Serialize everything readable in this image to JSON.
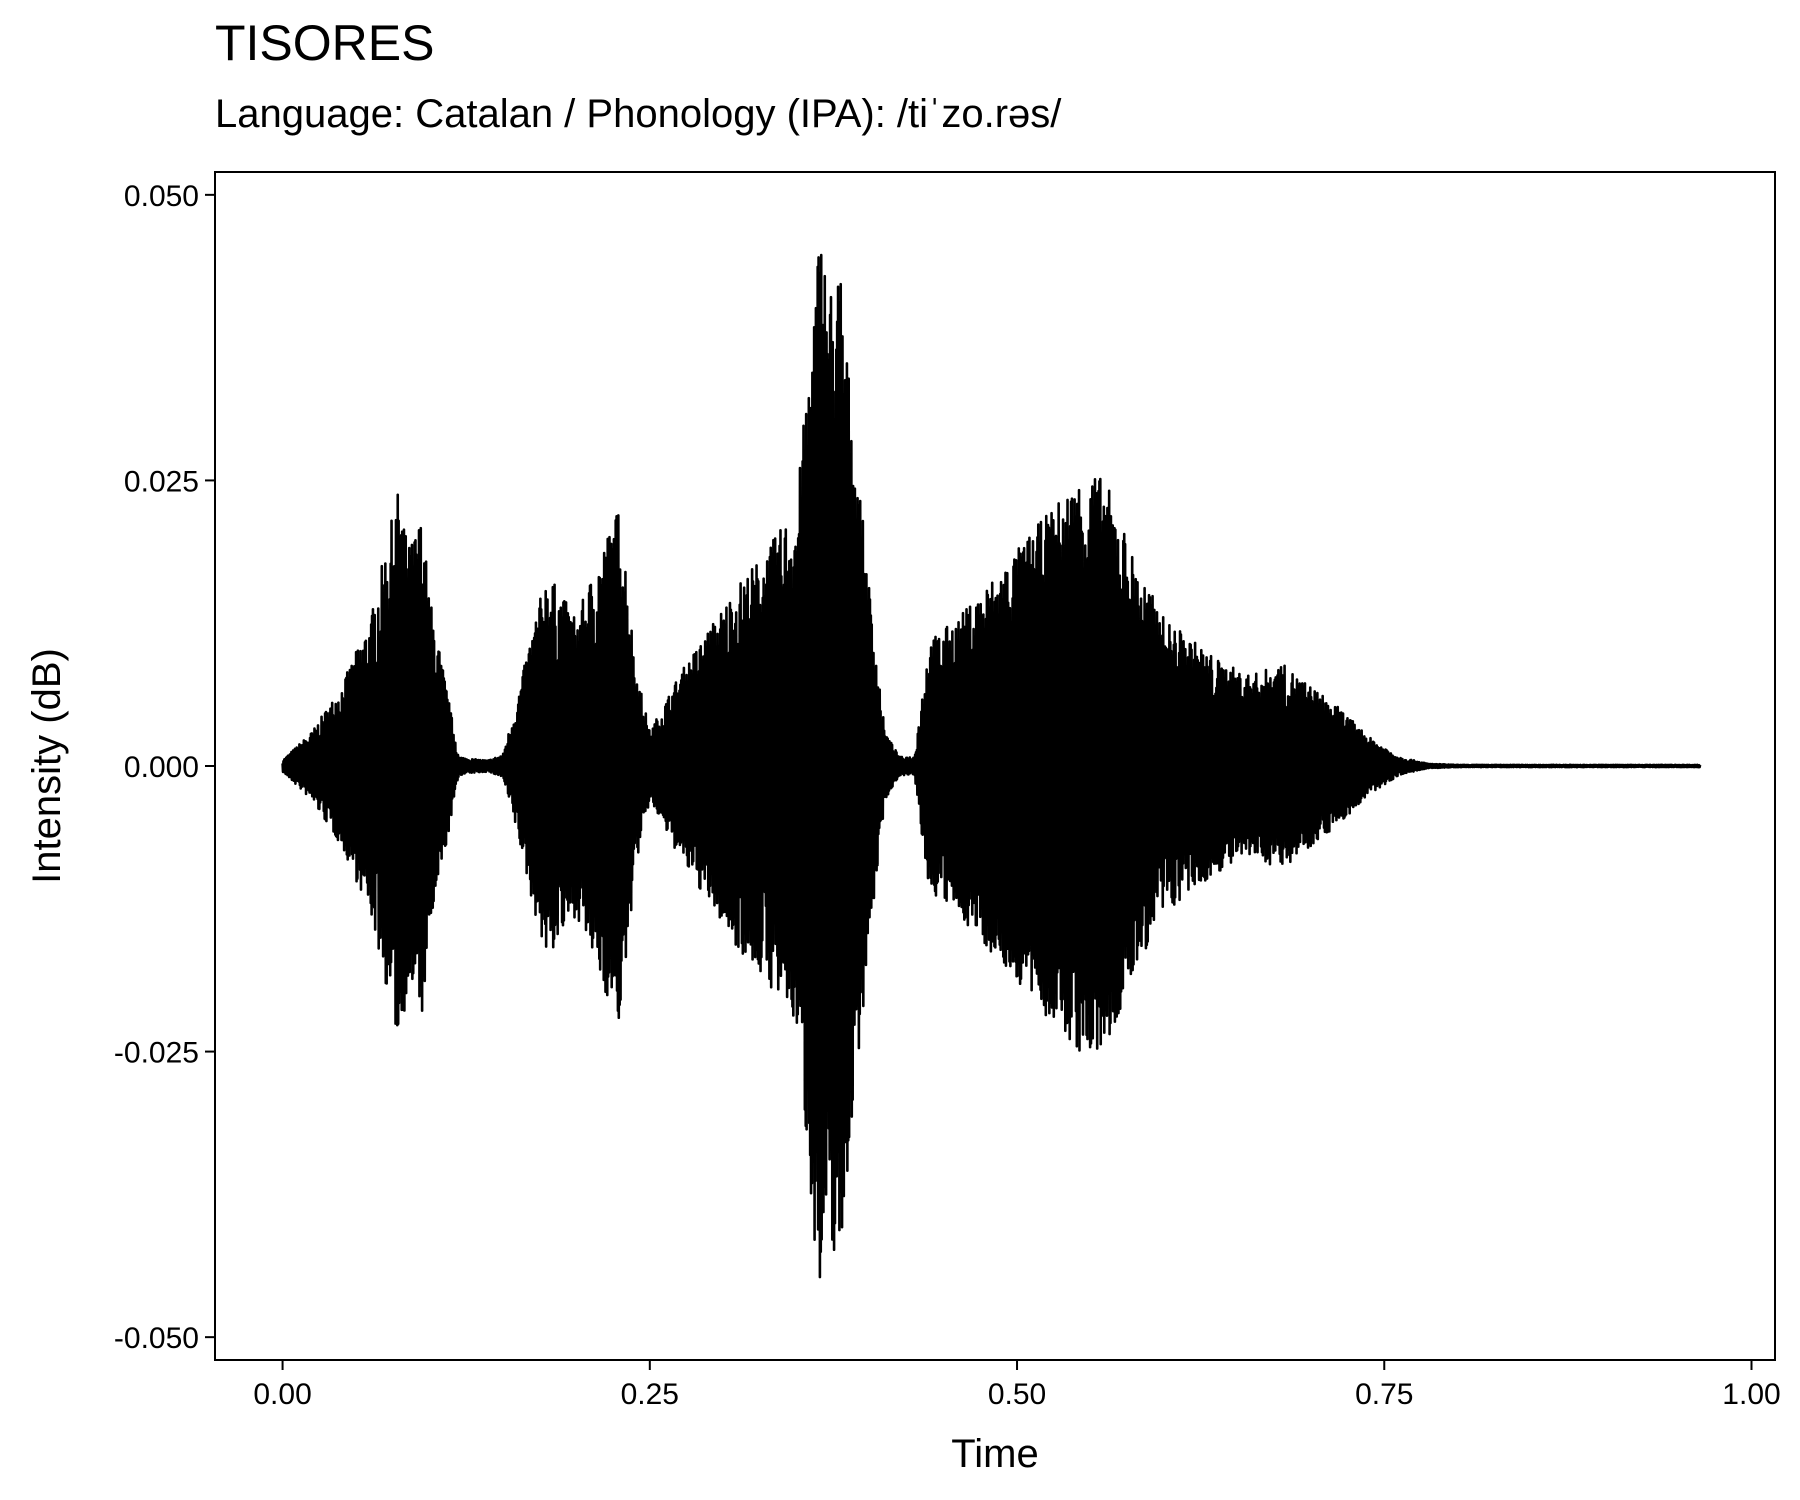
{
  "chart_data": {
    "type": "line",
    "title": "TISORES",
    "subtitle": "Language: Catalan / Phonology (IPA): /tiˈzo.rəs/",
    "xlabel": "Time",
    "ylabel": "Intensity (dB)",
    "xlim": [
      -0.046,
      1.016
    ],
    "ylim": [
      -0.052,
      0.052
    ],
    "x_ticks": [
      0.0,
      0.25,
      0.5,
      0.75,
      1.0
    ],
    "x_tick_labels": [
      "0.00",
      "0.25",
      "0.50",
      "0.75",
      "1.00"
    ],
    "y_ticks": [
      0.05,
      0.025,
      0.0,
      -0.025,
      -0.05
    ],
    "y_tick_labels": [
      "0.050",
      "0.025",
      "0.000",
      "-0.025",
      "-0.050"
    ],
    "grid": false,
    "legend": "none",
    "line_color": "#000000",
    "series": [
      {
        "x": [
          0.0,
          0.02,
          0.04,
          0.06,
          0.075,
          0.08,
          0.085,
          0.095,
          0.1,
          0.11,
          0.12,
          0.13,
          0.14,
          0.15,
          0.16,
          0.17,
          0.18,
          0.19,
          0.2,
          0.22,
          0.23,
          0.24,
          0.25,
          0.27,
          0.29,
          0.31,
          0.33,
          0.35,
          0.36,
          0.366,
          0.372,
          0.38,
          0.385,
          0.39,
          0.4,
          0.41,
          0.42,
          0.43,
          0.44,
          0.46,
          0.48,
          0.5,
          0.52,
          0.54,
          0.55,
          0.56,
          0.57,
          0.58,
          0.6,
          0.62,
          0.64,
          0.66,
          0.68,
          0.7,
          0.72,
          0.74,
          0.76,
          0.78,
          0.8,
          0.85,
          0.9,
          0.95,
          0.965
        ],
        "envelope": [
          0.0005,
          0.003,
          0.007,
          0.013,
          0.022,
          0.025,
          0.019,
          0.022,
          0.015,
          0.008,
          0.0008,
          0.0006,
          0.0005,
          0.001,
          0.006,
          0.012,
          0.017,
          0.015,
          0.013,
          0.02,
          0.023,
          0.009,
          0.003,
          0.008,
          0.012,
          0.016,
          0.019,
          0.023,
          0.038,
          0.048,
          0.042,
          0.044,
          0.035,
          0.028,
          0.015,
          0.003,
          0.0008,
          0.0008,
          0.011,
          0.013,
          0.016,
          0.019,
          0.022,
          0.025,
          0.026,
          0.025,
          0.022,
          0.018,
          0.013,
          0.011,
          0.009,
          0.008,
          0.009,
          0.007,
          0.005,
          0.0025,
          0.0008,
          0.0002,
          0.0001,
          0.0001,
          0.0001,
          0.0001,
          0.0001
        ]
      }
    ]
  }
}
